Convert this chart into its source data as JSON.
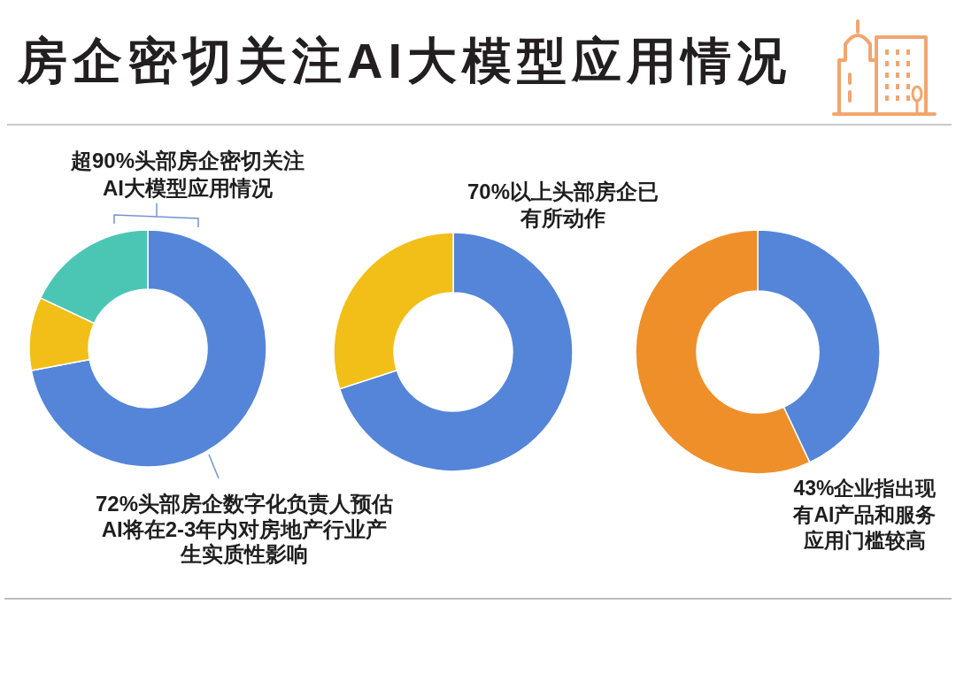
{
  "chart_data": [
    {
      "type": "donut",
      "title": "房企密切关注AI大模型应用情况",
      "categories": [
        null,
        null,
        null
      ],
      "values": [
        72,
        10,
        18
      ],
      "colors": [
        "#5585d8",
        "#f1bf17",
        "#4cc6b4"
      ],
      "annotations": [
        "超90%头部房企密切关注AI大模型应用情况",
        "72%头部房企数字化负责人预估AI将在2-3年内对房地产行业产生实质性影响"
      ]
    },
    {
      "type": "donut",
      "categories": [
        null,
        null
      ],
      "values": [
        70,
        30
      ],
      "colors": [
        "#5585d8",
        "#f1bf17"
      ],
      "annotations": [
        "70%以上头部房企已有所动作"
      ]
    },
    {
      "type": "donut",
      "categories": [
        null,
        null
      ],
      "values": [
        43,
        57
      ],
      "colors": [
        "#5585d8",
        "#ef8f2a"
      ],
      "annotations": [
        "43%企业指出现有AI产品和服务应用门槛较高"
      ]
    }
  ]
}
